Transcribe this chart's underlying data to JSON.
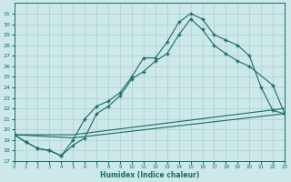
{
  "xlabel": "Humidex (Indice chaleur)",
  "background_color": "#cce8e8",
  "grid_color": "#aad0d0",
  "line_color": "#1a6b6b",
  "xlim": [
    0,
    23
  ],
  "ylim": [
    17,
    32
  ],
  "yticks": [
    17,
    18,
    19,
    20,
    21,
    22,
    23,
    24,
    25,
    26,
    27,
    28,
    29,
    30,
    31
  ],
  "xticks": [
    0,
    1,
    2,
    3,
    4,
    5,
    6,
    7,
    8,
    9,
    10,
    11,
    12,
    13,
    14,
    15,
    16,
    17,
    18,
    19,
    20,
    21,
    22,
    23
  ],
  "line1_x": [
    0,
    1,
    2,
    3,
    4,
    5,
    6,
    7,
    8,
    9,
    10,
    11,
    12,
    13,
    14,
    15,
    16,
    17,
    18,
    19,
    20,
    21,
    22,
    23
  ],
  "line1_y": [
    19.5,
    18.8,
    18.2,
    18.0,
    17.5,
    19.0,
    21.0,
    22.2,
    22.7,
    23.5,
    25.0,
    26.8,
    26.8,
    28.3,
    30.2,
    31.0,
    30.5,
    29.0,
    28.5,
    28.0,
    27.0,
    24.0,
    21.8,
    21.5
  ],
  "line2_x": [
    0,
    1,
    2,
    3,
    4,
    5,
    6,
    7,
    8,
    9,
    10,
    11,
    12,
    13,
    14,
    15,
    16,
    17,
    18,
    19,
    20,
    22,
    23
  ],
  "line2_y": [
    19.5,
    18.8,
    18.2,
    18.0,
    17.5,
    18.5,
    19.2,
    21.5,
    22.2,
    23.2,
    24.8,
    25.5,
    26.5,
    27.2,
    29.0,
    30.5,
    29.5,
    28.0,
    27.2,
    26.5,
    26.0,
    24.2,
    21.5
  ],
  "line3_x": [
    0,
    5,
    23
  ],
  "line3_y": [
    19.5,
    19.5,
    22.0
  ],
  "line4_x": [
    0,
    5,
    23
  ],
  "line4_y": [
    19.5,
    19.2,
    21.5
  ]
}
